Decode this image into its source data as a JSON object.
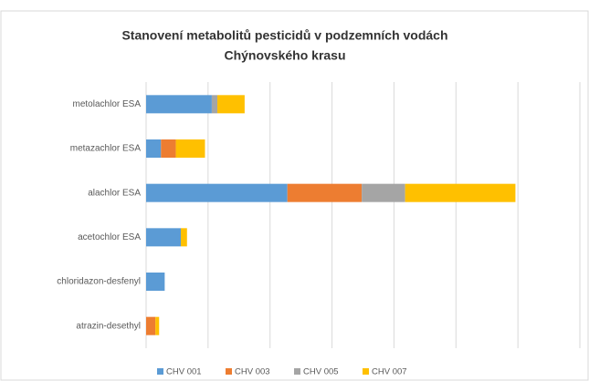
{
  "chart_data": {
    "type": "stacked_barh",
    "title": [
      "Stanovení metabolitů pesticidů v podzemních vodách",
      "Chýnovského krasu"
    ],
    "categories": [
      "metolachlor ESA",
      "metazachlor ESA",
      "alachlor ESA",
      "acetochlor ESA",
      "chloridazon-desfenyl",
      "atrazin-desethyl"
    ],
    "series": [
      {
        "name": "CHV 001",
        "color": "#5b9bd5",
        "values": [
          1.06,
          0.24,
          2.28,
          0.56,
          0.3,
          0
        ]
      },
      {
        "name": "CHV 003",
        "color": "#ed7d31",
        "values": [
          0,
          0.24,
          1.2,
          0,
          0,
          0.15
        ]
      },
      {
        "name": "CHV 005",
        "color": "#a5a5a5",
        "values": [
          0.09,
          0,
          0.7,
          0,
          0,
          0
        ]
      },
      {
        "name": "CHV 007",
        "color": "#ffc000",
        "values": [
          0.44,
          0.47,
          1.78,
          0.1,
          0,
          0.06
        ]
      }
    ],
    "xlim": [
      0,
      7
    ],
    "xticks": [
      0,
      1,
      2,
      3,
      4,
      5,
      6,
      7
    ],
    "grid": true,
    "legend": "bottom"
  }
}
